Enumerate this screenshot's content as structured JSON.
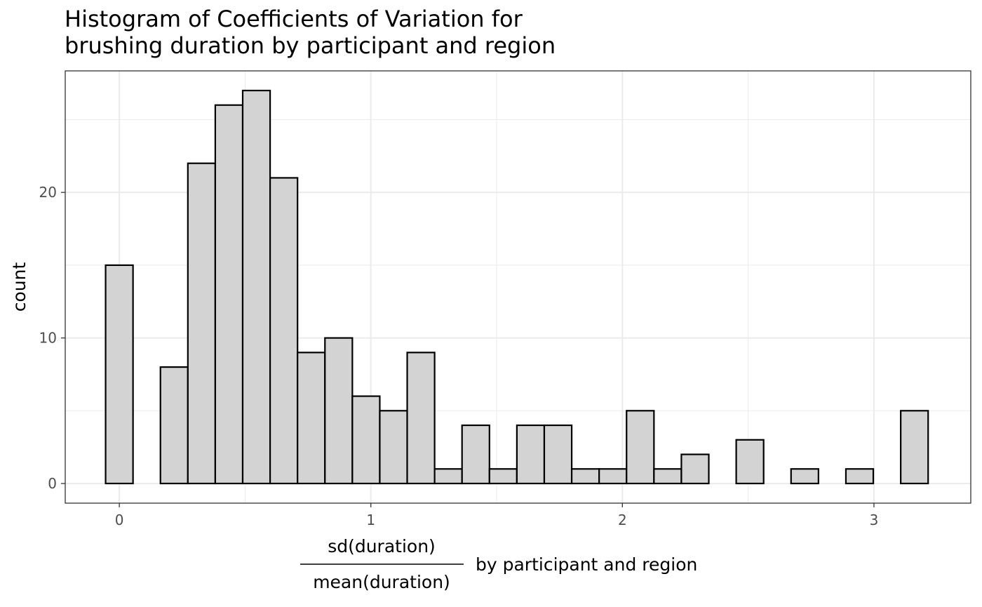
{
  "chart_data": {
    "type": "bar",
    "title_lines": [
      "Histogram of Coefficients of Variation for",
      "brushing duration by participant and region"
    ],
    "xlabel": {
      "numerator": "sd(duration)",
      "denominator": "mean(duration)",
      "suffix": "by participant and region"
    },
    "ylabel": "count",
    "xlim": [
      -0.215,
      3.385
    ],
    "ylim": [
      -1.35,
      28.35
    ],
    "x_ticks": [
      0,
      1,
      2,
      3
    ],
    "x_tick_labels": [
      "0",
      "1",
      "2",
      "3"
    ],
    "y_ticks": [
      0,
      10,
      20
    ],
    "y_tick_labels": [
      "0",
      "10",
      "20"
    ],
    "bin_width": 0.109,
    "bin_centers": [
      0.0,
      0.109,
      0.218,
      0.327,
      0.436,
      0.545,
      0.654,
      0.763,
      0.872,
      0.981,
      1.09,
      1.199,
      1.308,
      1.417,
      1.526,
      1.635,
      1.744,
      1.853,
      1.962,
      2.071,
      2.18,
      2.289,
      2.398,
      2.507,
      2.616,
      2.725,
      2.834,
      2.943,
      3.052,
      3.161
    ],
    "values": [
      15,
      0,
      8,
      22,
      26,
      27,
      21,
      9,
      10,
      6,
      5,
      9,
      1,
      4,
      1,
      4,
      4,
      1,
      1,
      5,
      1,
      2,
      0,
      3,
      0,
      1,
      0,
      1,
      0,
      5
    ],
    "grid": true,
    "bar_fill": "#d3d3d3",
    "bar_stroke": "#000000",
    "grid_color": "#ebebeb",
    "panel_border": "#333333"
  }
}
